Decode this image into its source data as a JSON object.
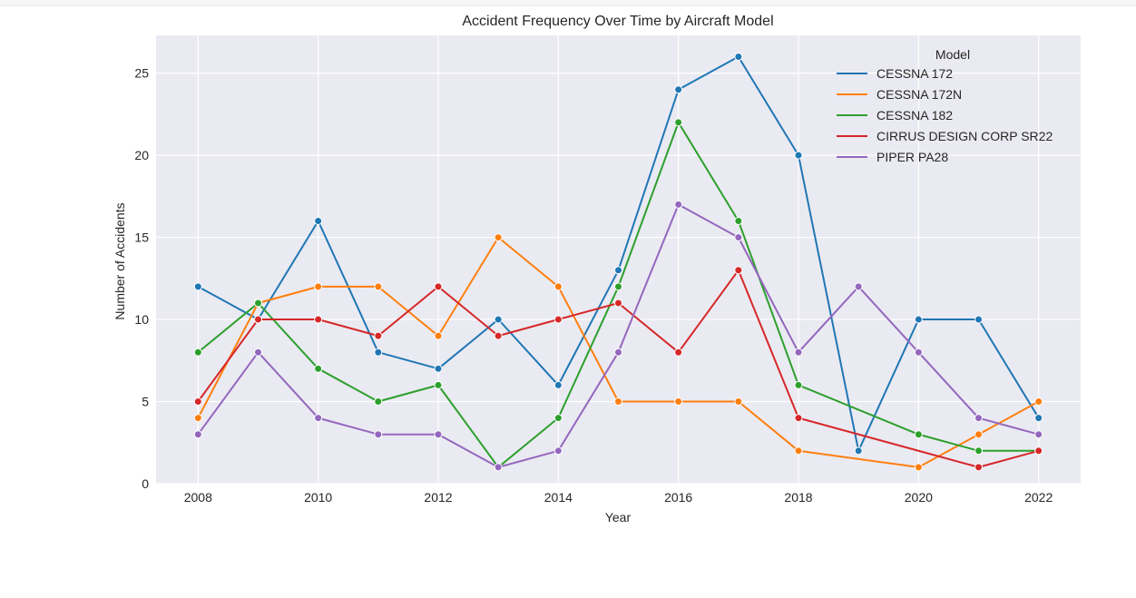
{
  "chart_data": {
    "type": "line",
    "title": "Accident Frequency Over Time by Aircraft Model",
    "xlabel": "Year",
    "ylabel": "Number of Accidents",
    "x": [
      2008,
      2009,
      2010,
      2011,
      2012,
      2013,
      2014,
      2015,
      2016,
      2017,
      2018,
      2019,
      2020,
      2021,
      2022
    ],
    "xlim": [
      2007.3,
      2022.7
    ],
    "ylim": [
      0,
      27.3
    ],
    "xticks": [
      2008,
      2010,
      2012,
      2014,
      2016,
      2018,
      2020,
      2022
    ],
    "yticks": [
      0,
      5,
      10,
      15,
      20,
      25
    ],
    "grid": true,
    "legend": {
      "title": "Model",
      "position": "top-right"
    },
    "series": [
      {
        "name": "CESSNA 172",
        "color": "#1f77b4",
        "values": [
          12,
          10,
          16,
          8,
          7,
          10,
          6,
          13,
          24,
          26,
          20,
          2,
          10,
          10,
          4
        ]
      },
      {
        "name": "CESSNA 172N",
        "color": "#ff7f0e",
        "values": [
          4,
          11,
          12,
          12,
          9,
          15,
          12,
          5,
          5,
          5,
          2,
          null,
          1,
          3,
          5
        ]
      },
      {
        "name": "CESSNA 182",
        "color": "#2ca02c",
        "values": [
          8,
          11,
          7,
          5,
          6,
          1,
          4,
          12,
          22,
          16,
          6,
          null,
          3,
          2,
          2
        ]
      },
      {
        "name": "CIRRUS DESIGN CORP SR22",
        "color": "#d62728",
        "values": [
          5,
          10,
          10,
          9,
          12,
          9,
          10,
          11,
          8,
          13,
          4,
          null,
          null,
          1,
          2
        ]
      },
      {
        "name": "PIPER PA28",
        "color": "#9467bd",
        "values": [
          3,
          8,
          4,
          3,
          3,
          1,
          2,
          8,
          17,
          15,
          8,
          12,
          8,
          4,
          3
        ]
      }
    ]
  }
}
